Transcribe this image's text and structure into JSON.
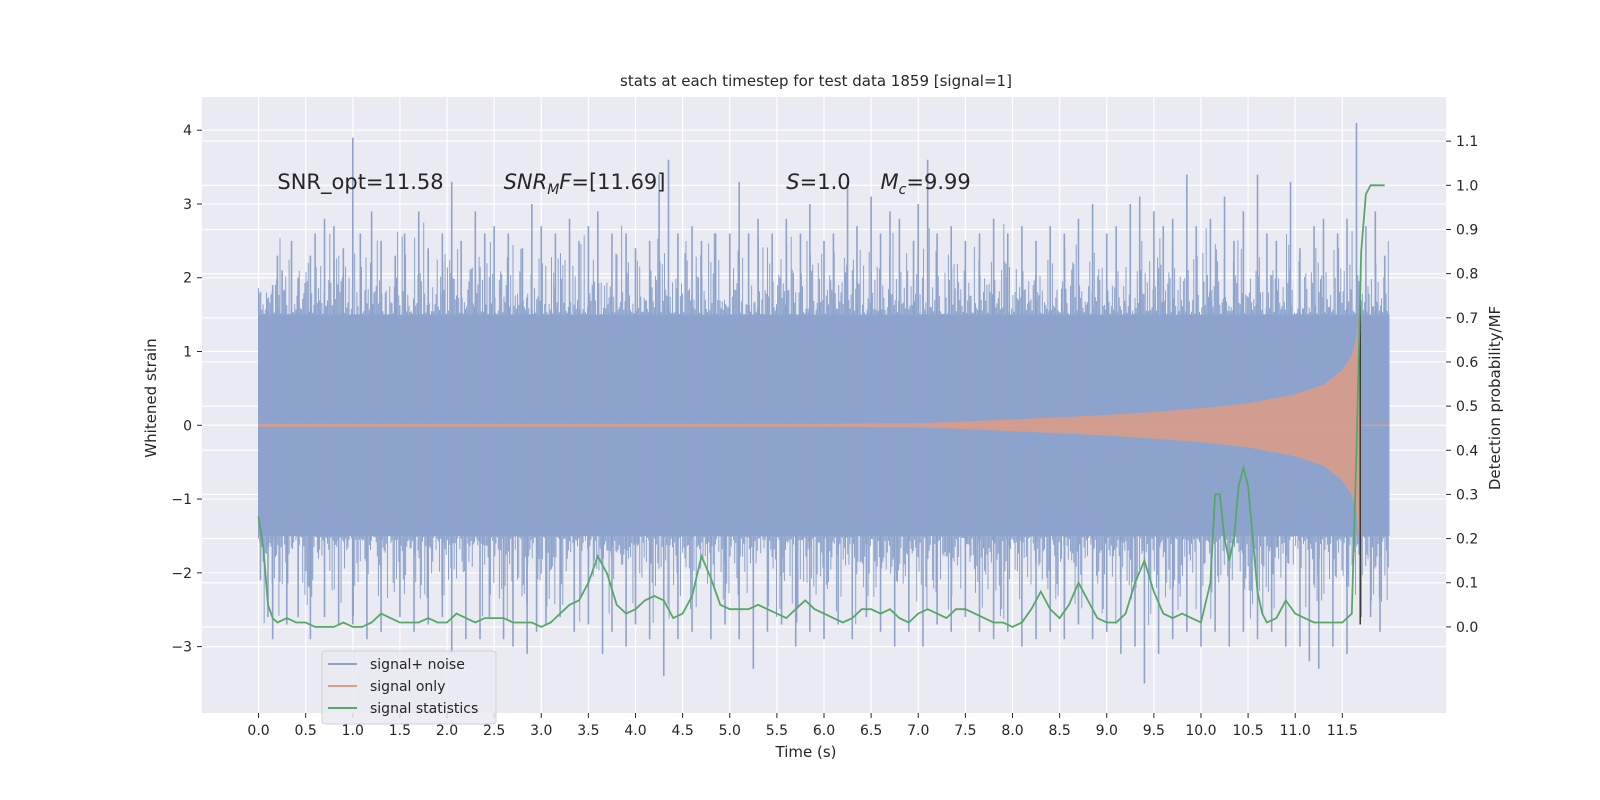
{
  "chart_data": {
    "type": "line",
    "title": "stats at each timestep for test data 1859 [signal=1]",
    "xlabel": "Time (s)",
    "ylabel_left": "Whitened strain",
    "ylabel_right": "Detection probability/MF",
    "xlim": [
      -0.6,
      12.6
    ],
    "ylim_left": [
      -3.9,
      4.45
    ],
    "ylim_right": [
      -0.195,
      1.2
    ],
    "x_ticks": [
      0.0,
      0.5,
      1.0,
      1.5,
      2.0,
      2.5,
      3.0,
      3.5,
      4.0,
      4.5,
      5.0,
      5.5,
      6.0,
      6.5,
      7.0,
      7.5,
      8.0,
      8.5,
      9.0,
      9.5,
      10.0,
      10.5,
      11.0,
      11.5
    ],
    "x_tick_labels": [
      "0.0",
      "0.5",
      "1.0",
      "1.5",
      "2.0",
      "2.5",
      "3.0",
      "3.5",
      "4.0",
      "4.5",
      "5.0",
      "5.5",
      "6.0",
      "6.5",
      "7.0",
      "7.5",
      "8.0",
      "8.5",
      "9.0",
      "9.5",
      "10.0",
      "10.5",
      "11.0",
      "11.5"
    ],
    "y_left_ticks": [
      -3,
      -2,
      -1,
      0,
      1,
      2,
      3,
      4
    ],
    "y_left_tick_labels": [
      "−3",
      "−2",
      "−1",
      "0",
      "1",
      "2",
      "3",
      "4"
    ],
    "y_right_ticks": [
      0.0,
      0.1,
      0.2,
      0.3,
      0.4,
      0.5,
      0.6,
      0.7,
      0.8,
      0.9,
      1.0,
      1.1
    ],
    "y_right_tick_labels": [
      "0.0",
      "0.1",
      "0.2",
      "0.3",
      "0.4",
      "0.5",
      "0.6",
      "0.7",
      "0.8",
      "0.9",
      "1.0",
      "1.1"
    ],
    "grid": true,
    "legend_position": "lower-left",
    "annotations": [
      {
        "x": 0.2,
        "y": 3.3,
        "parts": [
          {
            "t": "SNR_opt=11.58"
          }
        ]
      },
      {
        "x": 2.6,
        "y": 3.3,
        "parts": [
          {
            "t": "SNR",
            "i": true
          },
          {
            "t": "M",
            "i": true,
            "sub": true
          },
          {
            "t": "F",
            "i": true
          },
          {
            "t": "=[11.69]"
          }
        ]
      },
      {
        "x": 5.6,
        "y": 3.3,
        "parts": [
          {
            "t": "S",
            "i": true
          },
          {
            "t": "=1.0"
          }
        ]
      },
      {
        "x": 6.6,
        "y": 3.3,
        "parts": [
          {
            "t": "M",
            "i": true
          },
          {
            "t": "c",
            "i": true,
            "sub": true
          },
          {
            "t": "=9.99"
          }
        ]
      }
    ],
    "series": [
      {
        "name": "signal+ noise",
        "color": "#8da3cc",
        "axis": "left",
        "style": "noise-band",
        "x_range": [
          0.0,
          12.0
        ],
        "envelope_typical": [
          -1.5,
          1.5
        ],
        "peaks": [
          [
            0.05,
            1.0
          ],
          [
            0.1,
            1.55
          ],
          [
            0.15,
            1.9
          ],
          [
            0.2,
            2.3
          ],
          [
            0.25,
            2.1
          ],
          [
            0.35,
            2.5
          ],
          [
            0.42,
            2.0
          ],
          [
            0.55,
            2.3
          ],
          [
            0.6,
            2.6
          ],
          [
            0.7,
            2.8
          ],
          [
            0.8,
            2.7
          ],
          [
            0.9,
            2.4
          ],
          [
            1.0,
            3.9
          ],
          [
            1.08,
            2.6
          ],
          [
            1.2,
            2.9
          ],
          [
            1.3,
            2.5
          ],
          [
            1.45,
            2.3
          ],
          [
            1.55,
            2.6
          ],
          [
            1.7,
            2.9
          ],
          [
            1.8,
            2.4
          ],
          [
            1.95,
            2.6
          ],
          [
            2.05,
            3.3
          ],
          [
            2.15,
            2.5
          ],
          [
            2.3,
            2.9
          ],
          [
            2.4,
            2.6
          ],
          [
            2.5,
            2.7
          ],
          [
            2.65,
            2.6
          ],
          [
            2.8,
            2.4
          ],
          [
            2.9,
            3.0
          ],
          [
            3.0,
            2.7
          ],
          [
            3.15,
            2.6
          ],
          [
            3.3,
            2.8
          ],
          [
            3.4,
            2.5
          ],
          [
            3.5,
            2.7
          ],
          [
            3.6,
            2.9
          ],
          [
            3.75,
            2.6
          ],
          [
            3.9,
            2.6
          ],
          [
            4.0,
            2.4
          ],
          [
            4.15,
            2.5
          ],
          [
            4.25,
            3.4
          ],
          [
            4.35,
            3.6
          ],
          [
            4.45,
            2.6
          ],
          [
            4.6,
            2.7
          ],
          [
            4.7,
            2.5
          ],
          [
            4.85,
            2.6
          ],
          [
            5.0,
            2.6
          ],
          [
            5.1,
            3.3
          ],
          [
            5.2,
            2.6
          ],
          [
            5.3,
            2.8
          ],
          [
            5.45,
            2.6
          ],
          [
            5.6,
            2.8
          ],
          [
            5.75,
            2.6
          ],
          [
            5.85,
            3.0
          ],
          [
            6.0,
            2.5
          ],
          [
            6.1,
            2.6
          ],
          [
            6.25,
            3.3
          ],
          [
            6.35,
            2.7
          ],
          [
            6.5,
            3.1
          ],
          [
            6.6,
            2.6
          ],
          [
            6.7,
            2.9
          ],
          [
            6.8,
            2.8
          ],
          [
            6.95,
            2.5
          ],
          [
            7.0,
            3.0
          ],
          [
            7.1,
            3.6
          ],
          [
            7.2,
            2.6
          ],
          [
            7.35,
            2.7
          ],
          [
            7.5,
            2.5
          ],
          [
            7.65,
            2.6
          ],
          [
            7.8,
            2.8
          ],
          [
            7.95,
            2.6
          ],
          [
            8.1,
            2.7
          ],
          [
            8.25,
            2.5
          ],
          [
            8.4,
            2.7
          ],
          [
            8.55,
            2.6
          ],
          [
            8.7,
            2.8
          ],
          [
            8.85,
            3.0
          ],
          [
            9.0,
            2.6
          ],
          [
            9.1,
            2.7
          ],
          [
            9.25,
            3.0
          ],
          [
            9.35,
            3.1
          ],
          [
            9.5,
            2.9
          ],
          [
            9.6,
            2.7
          ],
          [
            9.7,
            2.8
          ],
          [
            9.85,
            3.4
          ],
          [
            9.95,
            2.7
          ],
          [
            10.1,
            2.8
          ],
          [
            10.25,
            3.1
          ],
          [
            10.35,
            2.5
          ],
          [
            10.45,
            2.9
          ],
          [
            10.6,
            3.4
          ],
          [
            10.7,
            2.6
          ],
          [
            10.8,
            2.5
          ],
          [
            10.95,
            3.3
          ],
          [
            11.05,
            2.4
          ],
          [
            11.2,
            2.7
          ],
          [
            11.3,
            2.8
          ],
          [
            11.45,
            2.6
          ],
          [
            11.55,
            2.8
          ],
          [
            11.65,
            4.1
          ],
          [
            11.75,
            2.7
          ],
          [
            11.85,
            2.9
          ],
          [
            11.95,
            2.3
          ]
        ],
        "troughs": [
          [
            0.02,
            -2.1
          ],
          [
            0.1,
            -2.6
          ],
          [
            0.15,
            -2.9
          ],
          [
            0.3,
            -2.7
          ],
          [
            0.42,
            -2.6
          ],
          [
            0.55,
            -2.9
          ],
          [
            0.7,
            -2.6
          ],
          [
            0.85,
            -2.7
          ],
          [
            1.0,
            -2.7
          ],
          [
            1.15,
            -2.9
          ],
          [
            1.3,
            -2.8
          ],
          [
            1.5,
            -2.6
          ],
          [
            1.65,
            -2.8
          ],
          [
            1.8,
            -2.7
          ],
          [
            1.95,
            -2.6
          ],
          [
            2.05,
            -3.1
          ],
          [
            2.2,
            -2.9
          ],
          [
            2.35,
            -2.9
          ],
          [
            2.45,
            -2.6
          ],
          [
            2.6,
            -2.9
          ],
          [
            2.7,
            -3.0
          ],
          [
            2.85,
            -3.1
          ],
          [
            2.95,
            -2.8
          ],
          [
            3.05,
            -2.7
          ],
          [
            3.2,
            -2.6
          ],
          [
            3.35,
            -2.8
          ],
          [
            3.5,
            -2.7
          ],
          [
            3.65,
            -3.1
          ],
          [
            3.75,
            -2.8
          ],
          [
            3.9,
            -3.0
          ],
          [
            4.0,
            -2.7
          ],
          [
            4.15,
            -2.9
          ],
          [
            4.3,
            -3.4
          ],
          [
            4.45,
            -2.9
          ],
          [
            4.6,
            -2.8
          ],
          [
            4.8,
            -2.9
          ],
          [
            4.95,
            -2.7
          ],
          [
            5.1,
            -2.9
          ],
          [
            5.25,
            -3.3
          ],
          [
            5.4,
            -2.8
          ],
          [
            5.55,
            -2.7
          ],
          [
            5.7,
            -3.0
          ],
          [
            5.85,
            -2.8
          ],
          [
            6.0,
            -2.9
          ],
          [
            6.15,
            -2.7
          ],
          [
            6.3,
            -2.9
          ],
          [
            6.45,
            -2.6
          ],
          [
            6.6,
            -2.8
          ],
          [
            6.75,
            -3.0
          ],
          [
            6.9,
            -2.8
          ],
          [
            7.05,
            -3.0
          ],
          [
            7.2,
            -2.7
          ],
          [
            7.35,
            -2.8
          ],
          [
            7.5,
            -2.6
          ],
          [
            7.65,
            -2.8
          ],
          [
            7.8,
            -2.9
          ],
          [
            7.95,
            -2.8
          ],
          [
            8.1,
            -3.0
          ],
          [
            8.25,
            -2.9
          ],
          [
            8.4,
            -2.8
          ],
          [
            8.55,
            -2.9
          ],
          [
            8.7,
            -2.7
          ],
          [
            8.85,
            -2.9
          ],
          [
            9.0,
            -2.8
          ],
          [
            9.15,
            -3.1
          ],
          [
            9.3,
            -3.0
          ],
          [
            9.4,
            -3.5
          ],
          [
            9.55,
            -3.1
          ],
          [
            9.7,
            -2.9
          ],
          [
            9.85,
            -2.8
          ],
          [
            10.0,
            -3.0
          ],
          [
            10.15,
            -2.8
          ],
          [
            10.3,
            -3.0
          ],
          [
            10.45,
            -2.8
          ],
          [
            10.6,
            -2.9
          ],
          [
            10.75,
            -2.8
          ],
          [
            10.9,
            -3.0
          ],
          [
            11.05,
            -3.0
          ],
          [
            11.15,
            -3.2
          ],
          [
            11.25,
            -3.3
          ],
          [
            11.4,
            -3.0
          ],
          [
            11.55,
            -3.1
          ],
          [
            11.7,
            -2.6
          ],
          [
            11.8,
            -2.6
          ],
          [
            11.9,
            -2.8
          ],
          [
            11.97,
            -1.7
          ]
        ]
      },
      {
        "name": "signal only",
        "color": "#dd9c86",
        "axis": "left",
        "style": "chirp-envelope",
        "x": [
          0.0,
          6.0,
          7.0,
          7.5,
          8.0,
          8.5,
          9.0,
          9.5,
          10.0,
          10.5,
          11.0,
          11.3,
          11.5,
          11.6,
          11.65,
          11.68,
          11.7,
          12.0
        ],
        "amplitude": [
          0.02,
          0.02,
          0.03,
          0.05,
          0.08,
          0.11,
          0.14,
          0.18,
          0.23,
          0.3,
          0.42,
          0.55,
          0.75,
          0.95,
          1.2,
          1.6,
          0.0,
          0.0
        ]
      },
      {
        "name": "signal statistics",
        "color": "#55a868",
        "axis": "right",
        "style": "line",
        "x": [
          0.0,
          0.05,
          0.1,
          0.15,
          0.2,
          0.3,
          0.4,
          0.5,
          0.6,
          0.7,
          0.8,
          0.9,
          1.0,
          1.1,
          1.2,
          1.3,
          1.4,
          1.5,
          1.6,
          1.7,
          1.8,
          1.9,
          2.0,
          2.1,
          2.2,
          2.3,
          2.4,
          2.5,
          2.6,
          2.7,
          2.8,
          2.9,
          3.0,
          3.1,
          3.2,
          3.3,
          3.4,
          3.5,
          3.6,
          3.7,
          3.8,
          3.9,
          4.0,
          4.1,
          4.2,
          4.3,
          4.4,
          4.5,
          4.6,
          4.7,
          4.8,
          4.9,
          5.0,
          5.1,
          5.2,
          5.3,
          5.4,
          5.5,
          5.6,
          5.7,
          5.8,
          5.9,
          6.0,
          6.1,
          6.2,
          6.3,
          6.4,
          6.5,
          6.6,
          6.7,
          6.8,
          6.9,
          7.0,
          7.1,
          7.2,
          7.3,
          7.4,
          7.5,
          7.6,
          7.7,
          7.8,
          7.9,
          8.0,
          8.1,
          8.2,
          8.3,
          8.4,
          8.5,
          8.6,
          8.7,
          8.8,
          8.9,
          9.0,
          9.1,
          9.2,
          9.3,
          9.4,
          9.5,
          9.6,
          9.7,
          9.8,
          9.9,
          10.0,
          10.1,
          10.15,
          10.2,
          10.25,
          10.3,
          10.35,
          10.4,
          10.45,
          10.5,
          10.55,
          10.6,
          10.65,
          10.7,
          10.8,
          10.9,
          11.0,
          11.1,
          11.2,
          11.3,
          11.4,
          11.5,
          11.6,
          11.65,
          11.7,
          11.75,
          11.8,
          11.85,
          11.9,
          11.95
        ],
        "y": [
          0.25,
          0.18,
          0.05,
          0.02,
          0.01,
          0.02,
          0.01,
          0.01,
          0.0,
          0.0,
          0.0,
          0.01,
          0.0,
          0.0,
          0.01,
          0.03,
          0.02,
          0.01,
          0.01,
          0.01,
          0.02,
          0.01,
          0.01,
          0.03,
          0.02,
          0.01,
          0.02,
          0.02,
          0.02,
          0.01,
          0.01,
          0.01,
          0.0,
          0.01,
          0.03,
          0.05,
          0.06,
          0.1,
          0.16,
          0.12,
          0.05,
          0.03,
          0.04,
          0.06,
          0.07,
          0.06,
          0.02,
          0.03,
          0.07,
          0.16,
          0.11,
          0.05,
          0.04,
          0.04,
          0.04,
          0.05,
          0.04,
          0.03,
          0.02,
          0.04,
          0.06,
          0.04,
          0.03,
          0.02,
          0.01,
          0.02,
          0.04,
          0.04,
          0.03,
          0.04,
          0.02,
          0.01,
          0.03,
          0.04,
          0.03,
          0.02,
          0.04,
          0.04,
          0.03,
          0.02,
          0.01,
          0.01,
          0.0,
          0.01,
          0.04,
          0.08,
          0.04,
          0.02,
          0.05,
          0.1,
          0.06,
          0.02,
          0.01,
          0.01,
          0.03,
          0.1,
          0.15,
          0.08,
          0.03,
          0.02,
          0.03,
          0.02,
          0.01,
          0.1,
          0.3,
          0.3,
          0.2,
          0.15,
          0.2,
          0.32,
          0.36,
          0.32,
          0.2,
          0.08,
          0.03,
          0.01,
          0.02,
          0.06,
          0.03,
          0.02,
          0.01,
          0.01,
          0.01,
          0.01,
          0.03,
          0.4,
          0.85,
          0.98,
          1.0,
          1.0,
          1.0,
          1.0
        ]
      }
    ],
    "vertical_line": {
      "x": 11.69,
      "y_left_range": [
        -2.7,
        1.75
      ],
      "color": "#3a3a3a"
    }
  }
}
